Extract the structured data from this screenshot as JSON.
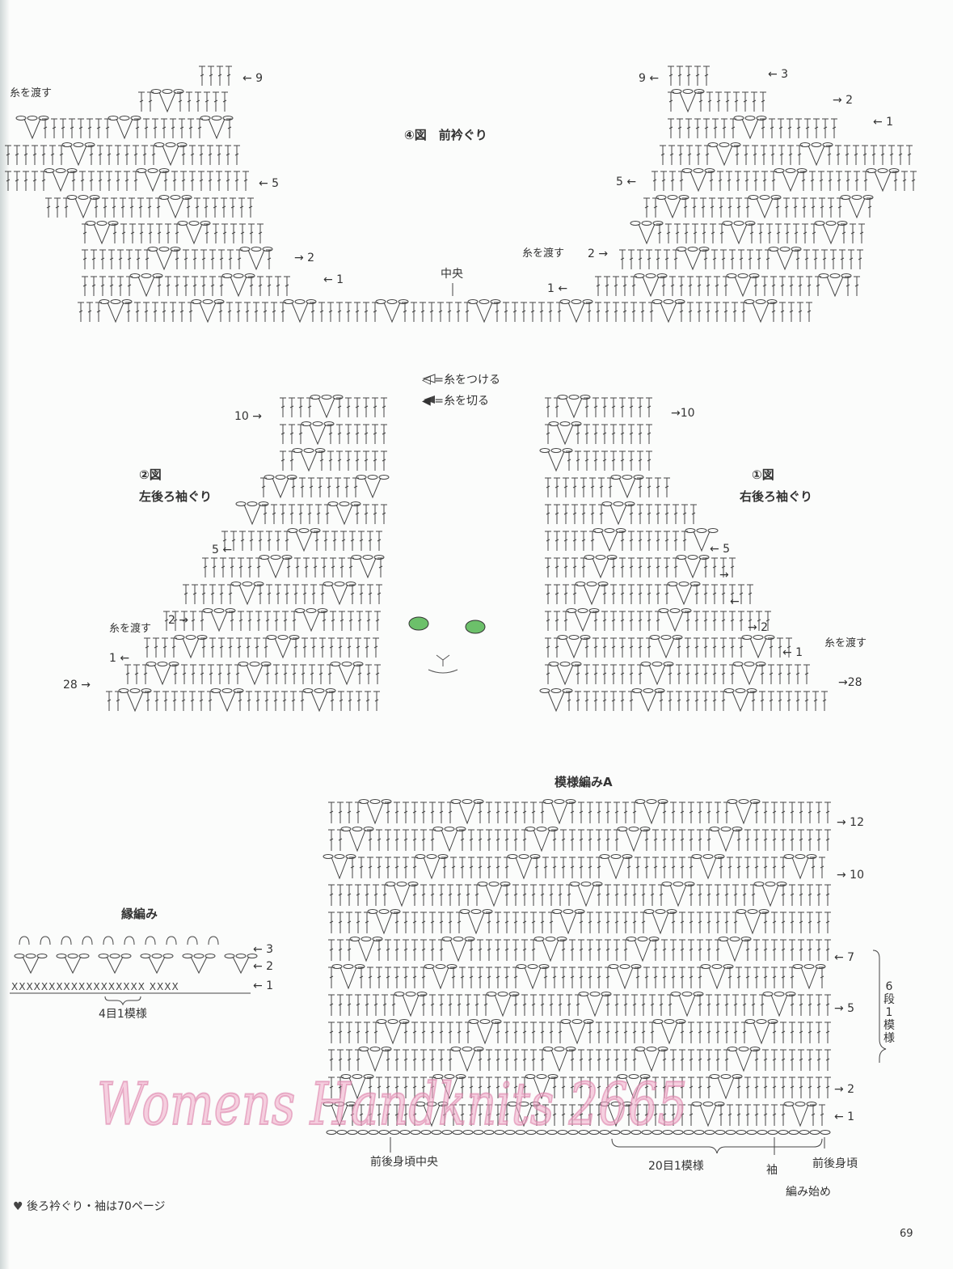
{
  "fig4": {
    "title": "④図　前衿ぐり",
    "center_label": "中央",
    "cross_yarn_left": "糸を渡す",
    "cross_yarn_right": "糸を渡す",
    "rows_left": [
      "← 9",
      "← 5",
      "→ 2",
      "← 1"
    ],
    "rows_right": [
      "9 ←",
      "← 3",
      "→ 2",
      "← 1",
      "5 ←",
      "2 →",
      "1 ←"
    ]
  },
  "legend": {
    "attach": "◁ =糸をつける",
    "cut": "◀ =糸を切る"
  },
  "fig2": {
    "number": "②図",
    "title": "左後ろ袖ぐり",
    "cross_yarn": "糸を渡す",
    "rows": [
      "10 →",
      "5 ←",
      "2 →",
      "1 ←",
      "28 →"
    ]
  },
  "fig1": {
    "number": "①図",
    "title": "右後ろ袖ぐり",
    "cross_yarn": "糸を渡す",
    "rows": [
      "→10",
      "← 5",
      "→",
      "←",
      "→ 2",
      "← 1",
      "→28"
    ]
  },
  "patternA": {
    "title": "模様編みA",
    "rows": [
      "→ 12",
      "→ 10",
      "← 7",
      "→ 5",
      "→ 2",
      "← 1"
    ],
    "repeat_rows": "6段1模様",
    "center_label": "前後身頃中央",
    "repeat_stitches": "20目1模様",
    "sleeve": "袖",
    "body": "前後身頃",
    "start": "編み始め"
  },
  "edging": {
    "title": "縁編み",
    "rows": [
      "← 3",
      "← 2",
      "← 1"
    ],
    "repeat": "4目1模様"
  },
  "watermark": "Womens Handknits 2665",
  "footer": {
    "icon": "heart-icon",
    "note": "後ろ衿ぐり・袖は70ページ"
  },
  "page_number": "69",
  "colors": {
    "ink": "#333333",
    "watermark": "#f0aac8",
    "cat_eyes": "#6cc06a"
  }
}
